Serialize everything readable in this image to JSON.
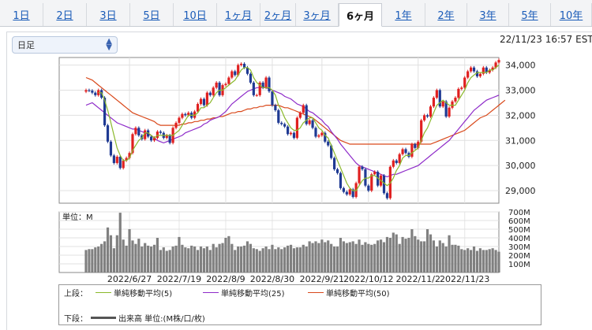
{
  "tabs": [
    {
      "label": "1日",
      "active": false
    },
    {
      "label": "2日",
      "active": false
    },
    {
      "label": "3日",
      "active": false
    },
    {
      "label": "5日",
      "active": false
    },
    {
      "label": "10日",
      "active": false
    },
    {
      "label": "1ヶ月",
      "active": false
    },
    {
      "label": "2ヶ月",
      "active": false
    },
    {
      "label": "3ヶ月",
      "active": false
    },
    {
      "label": "6ヶ月",
      "active": true
    },
    {
      "label": "1年",
      "active": false
    },
    {
      "label": "2年",
      "active": false
    },
    {
      "label": "3年",
      "active": false
    },
    {
      "label": "5年",
      "active": false
    },
    {
      "label": "10年",
      "active": false
    }
  ],
  "period_select": {
    "value": "日足",
    "icon": "chevron-updown-icon"
  },
  "timestamp": "22/11/23 16:57 EST",
  "colors": {
    "up": "#e02020",
    "down": "#1f3a93",
    "ma5": "#8ab82a",
    "ma25": "#8e2bc9",
    "ma50": "#d9491b",
    "volume": "#808080"
  },
  "chart_data": [
    {
      "type": "candlestick",
      "ylim": [
        28500,
        34300
      ],
      "ytick_labels": [
        "29,000",
        "30,000",
        "31,000",
        "32,000",
        "33,000",
        "34,000"
      ],
      "ytick_values": [
        29000,
        30000,
        31000,
        32000,
        33000,
        34000
      ],
      "close": [
        33000,
        32980,
        32900,
        32800,
        33000,
        32700,
        31600,
        30950,
        30400,
        30100,
        30350,
        29900,
        30200,
        30300,
        30500,
        31250,
        31500,
        31200,
        31050,
        31400,
        31150,
        31000,
        31100,
        31350,
        31300,
        31100,
        31200,
        30900,
        31500,
        31700,
        31900,
        32050,
        32000,
        32100,
        31900,
        32150,
        32450,
        32650,
        32400,
        32900,
        32800,
        33100,
        33300,
        32800,
        33200,
        33250,
        33500,
        33750,
        33600,
        34000,
        34050,
        33900,
        33650,
        33300,
        32800,
        32800,
        33300,
        33100,
        33500,
        32950,
        32400,
        32200,
        31700,
        31650,
        31550,
        31250,
        31300,
        31100,
        31900,
        32100,
        32400,
        31650,
        31800,
        31500,
        31150,
        31200,
        31300,
        30950,
        30800,
        30300,
        29850,
        29700,
        29100,
        28950,
        28850,
        29050,
        28750,
        29300,
        29950,
        29850,
        29200,
        29000,
        29650,
        29750,
        29200,
        29600,
        28900,
        28700,
        29950,
        30200,
        30100,
        30450,
        30650,
        30500,
        30350,
        30850,
        30700,
        30950,
        31800,
        32000,
        31950,
        32350,
        32700,
        33000,
        32350,
        32550,
        31950,
        32300,
        32550,
        32700,
        33050,
        33100,
        33500,
        33750,
        33900,
        33750,
        33550,
        33650,
        33900,
        33700,
        33800,
        33900,
        34100,
        34200
      ],
      "ma5": [
        null,
        null,
        null,
        null,
        32900,
        32900,
        32600,
        32200,
        31700,
        31200,
        30700,
        30400,
        30200,
        30200,
        30300,
        30600,
        30800,
        31000,
        31100,
        31300,
        31300,
        31200,
        31100,
        31200,
        31200,
        31200,
        31200,
        31200,
        31200,
        31300,
        31400,
        31600,
        31800,
        32000,
        32000,
        32000,
        32100,
        32300,
        32300,
        32400,
        32500,
        32700,
        32900,
        33000,
        33000,
        33100,
        33200,
        33300,
        33400,
        33600,
        33800,
        33900,
        33900,
        33800,
        33500,
        33300,
        33200,
        33100,
        33100,
        33100,
        33000,
        32800,
        32400,
        32200,
        31900,
        31700,
        31500,
        31400,
        31400,
        31500,
        31700,
        31800,
        31900,
        31900,
        31700,
        31500,
        31400,
        31200,
        31100,
        30800,
        30500,
        30200,
        29900,
        29600,
        29300,
        29100,
        29000,
        29000,
        29200,
        29400,
        29500,
        29500,
        29600,
        29600,
        29500,
        29400,
        29300,
        29200,
        29300,
        29500,
        29800,
        30000,
        30300,
        30400,
        30400,
        30500,
        30600,
        30700,
        31000,
        31300,
        31500,
        31800,
        32100,
        32400,
        32500,
        32600,
        32500,
        32400,
        32400,
        32400,
        32600,
        32800,
        33000,
        33300,
        33500,
        33600,
        33700,
        33700,
        33700,
        33700,
        33800,
        33800,
        33900,
        34000
      ],
      "ma25": [
        32400,
        32450,
        32500,
        32400,
        32300,
        32200,
        32100,
        32000,
        31900,
        31800,
        31700,
        31650,
        31600,
        31550,
        31500,
        31450,
        31450,
        31400,
        31350,
        31300,
        31250,
        31200,
        31100,
        31000,
        30950,
        30900,
        30950,
        31000,
        31050,
        31100,
        31150,
        31200,
        31300,
        31350,
        31400,
        31450,
        31500,
        31550,
        31650,
        31700,
        31800,
        31850,
        31900,
        31950,
        32050,
        32150,
        32300,
        32450,
        32550,
        32650,
        32750,
        32850,
        32950,
        33000,
        33050,
        33100,
        33100,
        33100,
        33100,
        33050,
        33000,
        32950,
        32900,
        32850,
        32750,
        32700,
        32650,
        32550,
        32450,
        32400,
        32350,
        32250,
        32150,
        32100,
        32000,
        31900,
        31800,
        31650,
        31550,
        31350,
        31200,
        31050,
        30850,
        30700,
        30550,
        30400,
        30250,
        30100,
        30000,
        29950,
        29900,
        29850,
        29800,
        29750,
        29700,
        29650,
        29600,
        29550,
        29600,
        29650,
        29650,
        29700,
        29750,
        29800,
        29850,
        29900,
        29950,
        30000,
        30100,
        30200,
        30300,
        30400,
        30500,
        30600,
        30700,
        30800,
        30900,
        31000,
        31150,
        31300,
        31450,
        31600,
        31750,
        31900,
        32050,
        32200,
        32300,
        32400,
        32500,
        32600,
        32650,
        32700,
        32750,
        32800
      ],
      "ma50": [
        33500,
        33450,
        33400,
        33300,
        33200,
        33100,
        33000,
        32900,
        32800,
        32700,
        32600,
        32500,
        32400,
        32300,
        32200,
        32100,
        32050,
        32000,
        31950,
        31900,
        31850,
        31800,
        31750,
        31650,
        31600,
        31600,
        31600,
        31600,
        31600,
        31600,
        31600,
        31650,
        31650,
        31700,
        31700,
        31750,
        31750,
        31800,
        31800,
        31850,
        31850,
        31900,
        31900,
        31950,
        31950,
        32000,
        32050,
        32100,
        32100,
        32150,
        32150,
        32200,
        32250,
        32250,
        32300,
        32300,
        32350,
        32350,
        32400,
        32400,
        32400,
        32400,
        32400,
        32350,
        32300,
        32300,
        32250,
        32200,
        32150,
        32100,
        32050,
        32000,
        31950,
        31900,
        31800,
        31700,
        31600,
        31500,
        31400,
        31300,
        31200,
        31100,
        31000,
        30950,
        30900,
        30850,
        30850,
        30850,
        30850,
        30850,
        30850,
        30850,
        30850,
        30850,
        30850,
        30850,
        30850,
        30850,
        30850,
        30850,
        30850,
        30850,
        30850,
        30850,
        30850,
        30850,
        30850,
        30850,
        30850,
        30850,
        30850,
        30850,
        30900,
        30950,
        31000,
        31050,
        31100,
        31150,
        31200,
        31250,
        31300,
        31350,
        31400,
        31500,
        31600,
        31700,
        31800,
        31900,
        31950,
        32000,
        32100,
        32200,
        32300,
        32400,
        32500,
        32600
      ],
      "volume_ylim": [
        0,
        700
      ],
      "volume_tick_labels": [
        "100M",
        "200M",
        "300M",
        "400M",
        "500M",
        "600M",
        "700M"
      ],
      "volume_tick_values": [
        100,
        200,
        300,
        400,
        500,
        600,
        700
      ],
      "volume": [
        260,
        270,
        270,
        290,
        300,
        330,
        360,
        520,
        430,
        280,
        430,
        690,
        380,
        310,
        500,
        370,
        330,
        390,
        300,
        340,
        310,
        300,
        320,
        400,
        260,
        290,
        250,
        260,
        300,
        310,
        410,
        320,
        290,
        280,
        310,
        300,
        260,
        300,
        280,
        300,
        260,
        330,
        290,
        330,
        340,
        400,
        420,
        330,
        260,
        300,
        300,
        310,
        360,
        330,
        280,
        270,
        250,
        280,
        300,
        270,
        320,
        270,
        290,
        270,
        290,
        310,
        320,
        280,
        290,
        290,
        320,
        300,
        360,
        340,
        360,
        340,
        380,
        350,
        370,
        330,
        300,
        300,
        400,
        360,
        340,
        350,
        360,
        330,
        380,
        320,
        350,
        330,
        320,
        330,
        370,
        380,
        350,
        410,
        400,
        460,
        440,
        330,
        410,
        390,
        400,
        500,
        420,
        380,
        360,
        360,
        500,
        440,
        370,
        300,
        370,
        340,
        300,
        430,
        320,
        320,
        310,
        270,
        260,
        280,
        260,
        300,
        250,
        280,
        260,
        260,
        270,
        280,
        260,
        240
      ],
      "unit_label": "単位：M",
      "x_ticks": [
        {
          "label": "2022/6/27",
          "index": 14
        },
        {
          "label": "2022/7/19",
          "index": 30
        },
        {
          "label": "2022/8/9",
          "index": 45
        },
        {
          "label": "2022/8/30",
          "index": 60
        },
        {
          "label": "2022/9/21",
          "index": 76
        },
        {
          "label": "2022/10/12",
          "index": 91
        },
        {
          "label": "2022/11/2",
          "index": 107
        },
        {
          "label": "2022/11/23",
          "index": 122
        }
      ],
      "legend": {
        "upper_label": "上段：",
        "lower_label": "下段：",
        "ma5": "単純移動平均(5)",
        "ma25": "単純移動平均(25)",
        "ma50": "単純移動平均(50)",
        "volume": "出来高 単位:(M株/口/枚)"
      }
    }
  ]
}
